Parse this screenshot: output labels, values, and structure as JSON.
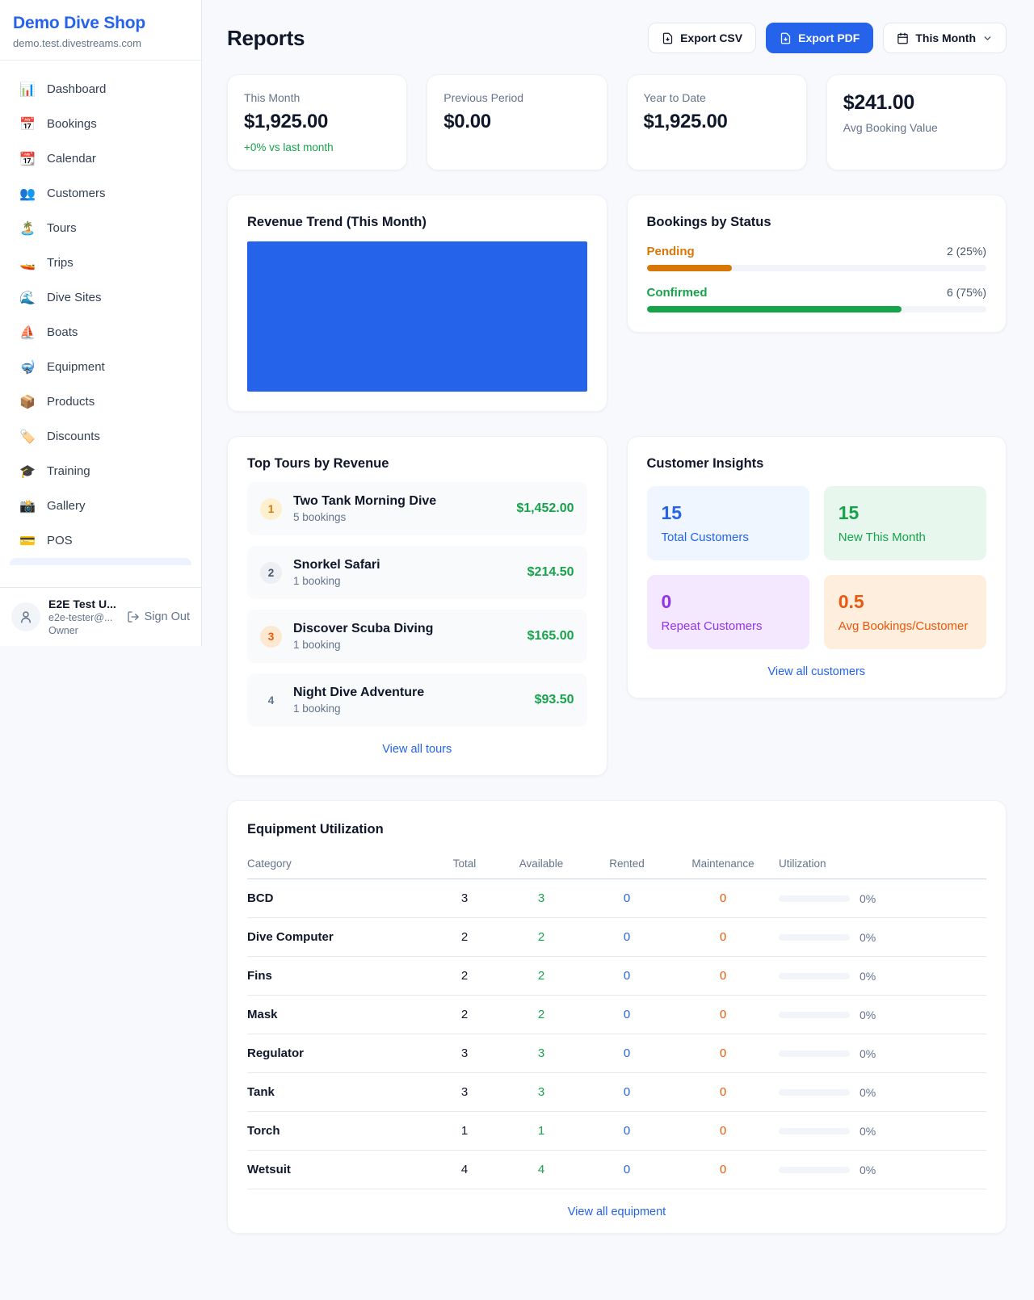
{
  "colors": {
    "accent": "#2563eb",
    "green": "#16a34a",
    "amber": "#d97706",
    "orange": "#ea580c",
    "purple": "#9333ea"
  },
  "brand": {
    "name": "Demo Dive Shop",
    "domain": "demo.test.divestreams.com"
  },
  "sidebar": {
    "items": [
      {
        "id": "dashboard",
        "icon": "📊",
        "label": "Dashboard"
      },
      {
        "id": "bookings",
        "icon": "📅",
        "label": "Bookings"
      },
      {
        "id": "calendar",
        "icon": "📆",
        "label": "Calendar"
      },
      {
        "id": "customers",
        "icon": "👥",
        "label": "Customers"
      },
      {
        "id": "tours",
        "icon": "🏝️",
        "label": "Tours"
      },
      {
        "id": "trips",
        "icon": "🚤",
        "label": "Trips"
      },
      {
        "id": "dive-sites",
        "icon": "🌊",
        "label": "Dive Sites"
      },
      {
        "id": "boats",
        "icon": "⛵",
        "label": "Boats"
      },
      {
        "id": "equipment",
        "icon": "🤿",
        "label": "Equipment"
      },
      {
        "id": "products",
        "icon": "📦",
        "label": "Products"
      },
      {
        "id": "discounts",
        "icon": "🏷️",
        "label": "Discounts"
      },
      {
        "id": "training",
        "icon": "🎓",
        "label": "Training"
      },
      {
        "id": "gallery",
        "icon": "📸",
        "label": "Gallery"
      },
      {
        "id": "pos",
        "icon": "💳",
        "label": "POS"
      }
    ],
    "user": {
      "name": "E2E Test U...",
      "email": "e2e-tester@...",
      "role": "Owner"
    },
    "sign_out_label": "Sign Out"
  },
  "header": {
    "title": "Reports",
    "export_csv_label": "Export CSV",
    "export_pdf_label": "Export PDF",
    "period_label": "This Month"
  },
  "stats": {
    "this_month": {
      "label": "This Month",
      "value": "$1,925.00",
      "delta": "+0% vs last month"
    },
    "previous_period": {
      "label": "Previous Period",
      "value": "$0.00"
    },
    "year_to_date": {
      "label": "Year to Date",
      "value": "$1,925.00"
    },
    "avg_booking": {
      "value": "$241.00",
      "label": "Avg Booking Value"
    }
  },
  "revenue_trend": {
    "title": "Revenue Trend (This Month)",
    "bar_fill_color": "#2563eb",
    "bar_fill_pct": 100
  },
  "bookings_by_status": {
    "title": "Bookings by Status",
    "rows": [
      {
        "label": "Pending",
        "count_text": "2 (25%)",
        "pct": 25
      },
      {
        "label": "Confirmed",
        "count_text": "6 (75%)",
        "pct": 75
      }
    ]
  },
  "top_tours": {
    "title": "Top Tours by Revenue",
    "items": [
      {
        "rank": "1",
        "name": "Two Tank Morning Dive",
        "bookings": "5 bookings",
        "revenue": "$1,452.00"
      },
      {
        "rank": "2",
        "name": "Snorkel Safari",
        "bookings": "1 booking",
        "revenue": "$214.50"
      },
      {
        "rank": "3",
        "name": "Discover Scuba Diving",
        "bookings": "1 booking",
        "revenue": "$165.00"
      },
      {
        "rank": "4",
        "name": "Night Dive Adventure",
        "bookings": "1 booking",
        "revenue": "$93.50"
      }
    ],
    "link": "View all tours"
  },
  "customer_insights": {
    "title": "Customer Insights",
    "tiles": [
      {
        "value": "15",
        "label": "Total Customers"
      },
      {
        "value": "15",
        "label": "New This Month"
      },
      {
        "value": "0",
        "label": "Repeat Customers"
      },
      {
        "value": "0.5",
        "label": "Avg Bookings/Customer"
      }
    ],
    "link": "View all customers"
  },
  "equipment": {
    "title": "Equipment Utilization",
    "columns": [
      "Category",
      "Total",
      "Available",
      "Rented",
      "Maintenance",
      "Utilization"
    ],
    "rows": [
      {
        "category": "BCD",
        "total": "3",
        "available": "3",
        "rented": "0",
        "maintenance": "0",
        "utilization_text": "0%",
        "utilization_pct": 0
      },
      {
        "category": "Dive Computer",
        "total": "2",
        "available": "2",
        "rented": "0",
        "maintenance": "0",
        "utilization_text": "0%",
        "utilization_pct": 0
      },
      {
        "category": "Fins",
        "total": "2",
        "available": "2",
        "rented": "0",
        "maintenance": "0",
        "utilization_text": "0%",
        "utilization_pct": 0
      },
      {
        "category": "Mask",
        "total": "2",
        "available": "2",
        "rented": "0",
        "maintenance": "0",
        "utilization_text": "0%",
        "utilization_pct": 0
      },
      {
        "category": "Regulator",
        "total": "3",
        "available": "3",
        "rented": "0",
        "maintenance": "0",
        "utilization_text": "0%",
        "utilization_pct": 0
      },
      {
        "category": "Tank",
        "total": "3",
        "available": "3",
        "rented": "0",
        "maintenance": "0",
        "utilization_text": "0%",
        "utilization_pct": 0
      },
      {
        "category": "Torch",
        "total": "1",
        "available": "1",
        "rented": "0",
        "maintenance": "0",
        "utilization_text": "0%",
        "utilization_pct": 0
      },
      {
        "category": "Wetsuit",
        "total": "4",
        "available": "4",
        "rented": "0",
        "maintenance": "0",
        "utilization_text": "0%",
        "utilization_pct": 0
      }
    ],
    "link": "View all equipment"
  }
}
